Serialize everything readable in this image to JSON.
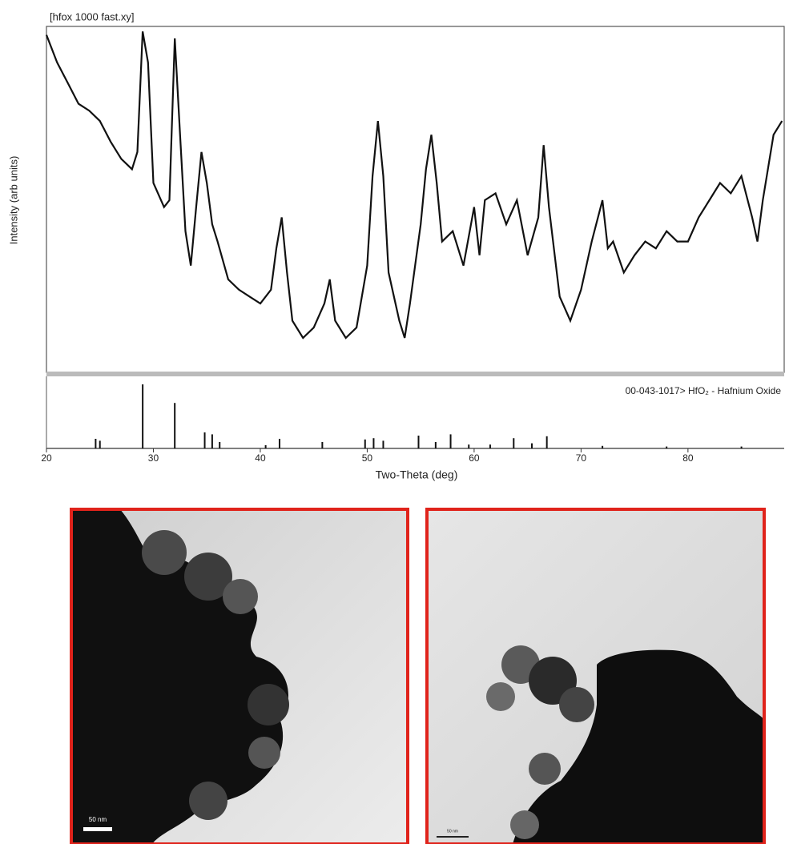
{
  "chart_data": {
    "type": "line",
    "title": "[hfox 1000 fast.xy]",
    "y_label": "Intensity (arb units)",
    "x_label": "Two-Theta (deg)",
    "color": "#111111",
    "x": [
      20,
      21,
      22,
      23,
      24,
      25,
      26,
      27,
      28,
      28.5,
      29,
      29.5,
      30,
      31,
      31.5,
      32,
      32.5,
      33,
      33.5,
      34,
      34.5,
      35,
      35.5,
      36,
      37,
      38,
      39,
      40,
      41,
      41.5,
      42,
      42.5,
      43,
      44,
      45,
      46,
      46.5,
      47,
      48,
      49,
      50,
      50.5,
      51,
      51.5,
      52,
      53,
      53.5,
      54,
      55,
      55.5,
      56,
      56.5,
      57,
      58,
      59,
      60,
      60.5,
      61,
      62,
      63,
      64,
      65,
      66,
      66.5,
      67,
      68,
      69,
      70,
      71,
      72,
      72.5,
      73,
      74,
      75,
      76,
      77,
      78,
      79,
      80,
      81,
      82,
      83,
      84,
      85,
      86,
      86.5,
      87,
      88,
      88.8
    ],
    "values": [
      98,
      90,
      84,
      78,
      76,
      73,
      67,
      62,
      59,
      64,
      99,
      90,
      55,
      48,
      50,
      97,
      69,
      41,
      31,
      48,
      64,
      55,
      43,
      38,
      27,
      24,
      22,
      20,
      24,
      36,
      45,
      29,
      15,
      10,
      13,
      20,
      27,
      15,
      10,
      13,
      31,
      57,
      73,
      57,
      29,
      15,
      10,
      20,
      43,
      59,
      69,
      55,
      38,
      41,
      31,
      48,
      34,
      50,
      52,
      43,
      50,
      34,
      45,
      66,
      48,
      22,
      15,
      24,
      38,
      50,
      36,
      38,
      29,
      34,
      38,
      36,
      41,
      38,
      38,
      45,
      50,
      55,
      52,
      57,
      45,
      38,
      50,
      69,
      73
    ],
    "xlim": [
      20,
      89
    ],
    "ylim": [
      0,
      100
    ],
    "xticks": [
      20,
      30,
      40,
      50,
      60,
      70,
      80
    ],
    "reference": {
      "label": "00-043-1017> HfO₂ - Hafnium Oxide",
      "color": "#111111",
      "x": [
        24.6,
        25,
        29,
        32,
        34.8,
        35.5,
        36.2,
        40.5,
        41.8,
        45.8,
        49.8,
        50.6,
        51.5,
        54.8,
        56.4,
        57.8,
        59.5,
        61.5,
        63.7,
        65.4,
        66.8,
        72,
        78,
        85
      ],
      "values": [
        15,
        12,
        100,
        71,
        25,
        22,
        10,
        5,
        15,
        10,
        14,
        16,
        12,
        20,
        10,
        22,
        6,
        6,
        16,
        8,
        19,
        4,
        3,
        3
      ],
      "ylim": [
        0,
        100
      ]
    }
  },
  "images": [
    {
      "scale_label": "50 nm"
    },
    {
      "scale_label": "50 nm"
    }
  ]
}
